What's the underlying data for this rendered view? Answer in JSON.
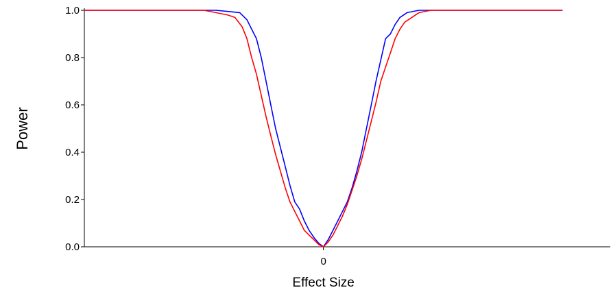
{
  "chart_data": {
    "type": "line",
    "title": "",
    "xlabel": "Effect Size",
    "ylabel": "Power",
    "x_tick_labels": [
      {
        "x": 0,
        "label": "0"
      }
    ],
    "y_ticks": [
      {
        "y": 0.0,
        "label": "0.0"
      },
      {
        "y": 0.2,
        "label": "0.2"
      },
      {
        "y": 0.4,
        "label": "0.4"
      },
      {
        "y": 0.6,
        "label": "0.6"
      },
      {
        "y": 0.8,
        "label": "0.8"
      },
      {
        "y": 1.0,
        "label": "1.0"
      }
    ],
    "xlim": [
      -1.0,
      1.2
    ],
    "ylim": [
      0,
      1.0
    ],
    "grid": false,
    "series": [
      {
        "color": "#0000ff",
        "points": [
          [
            -1.0,
            1.0
          ],
          [
            -0.5,
            1.0
          ],
          [
            -0.45,
            1.0
          ],
          [
            -0.4,
            0.995
          ],
          [
            -0.35,
            0.99
          ],
          [
            -0.32,
            0.96
          ],
          [
            -0.3,
            0.92
          ],
          [
            -0.28,
            0.88
          ],
          [
            -0.26,
            0.8
          ],
          [
            -0.24,
            0.7
          ],
          [
            -0.22,
            0.6
          ],
          [
            -0.2,
            0.5
          ],
          [
            -0.18,
            0.42
          ],
          [
            -0.16,
            0.34
          ],
          [
            -0.14,
            0.26
          ],
          [
            -0.12,
            0.19
          ],
          [
            -0.1,
            0.16
          ],
          [
            -0.08,
            0.11
          ],
          [
            -0.06,
            0.07
          ],
          [
            -0.04,
            0.04
          ],
          [
            -0.02,
            0.015
          ],
          [
            0.0,
            0.0
          ],
          [
            0.02,
            0.03
          ],
          [
            0.04,
            0.07
          ],
          [
            0.06,
            0.11
          ],
          [
            0.08,
            0.15
          ],
          [
            0.1,
            0.19
          ],
          [
            0.12,
            0.25
          ],
          [
            0.14,
            0.32
          ],
          [
            0.16,
            0.4
          ],
          [
            0.18,
            0.5
          ],
          [
            0.2,
            0.6
          ],
          [
            0.22,
            0.7
          ],
          [
            0.24,
            0.79
          ],
          [
            0.26,
            0.88
          ],
          [
            0.28,
            0.9
          ],
          [
            0.3,
            0.94
          ],
          [
            0.32,
            0.97
          ],
          [
            0.35,
            0.99
          ],
          [
            0.4,
            1.0
          ],
          [
            0.45,
            1.0
          ],
          [
            0.5,
            1.0
          ],
          [
            1.0,
            1.0
          ]
        ]
      },
      {
        "color": "#ff0000",
        "points": [
          [
            -1.0,
            1.0
          ],
          [
            -0.5,
            1.0
          ],
          [
            -0.45,
            0.99
          ],
          [
            -0.4,
            0.98
          ],
          [
            -0.37,
            0.97
          ],
          [
            -0.34,
            0.93
          ],
          [
            -0.32,
            0.88
          ],
          [
            -0.3,
            0.8
          ],
          [
            -0.28,
            0.73
          ],
          [
            -0.26,
            0.64
          ],
          [
            -0.24,
            0.55
          ],
          [
            -0.22,
            0.47
          ],
          [
            -0.2,
            0.39
          ],
          [
            -0.18,
            0.32
          ],
          [
            -0.16,
            0.25
          ],
          [
            -0.14,
            0.19
          ],
          [
            -0.12,
            0.15
          ],
          [
            -0.1,
            0.11
          ],
          [
            -0.08,
            0.07
          ],
          [
            -0.06,
            0.05
          ],
          [
            -0.04,
            0.03
          ],
          [
            -0.02,
            0.01
          ],
          [
            0.0,
            0.0
          ],
          [
            0.02,
            0.02
          ],
          [
            0.04,
            0.05
          ],
          [
            0.06,
            0.09
          ],
          [
            0.08,
            0.13
          ],
          [
            0.1,
            0.18
          ],
          [
            0.12,
            0.24
          ],
          [
            0.14,
            0.3
          ],
          [
            0.16,
            0.37
          ],
          [
            0.18,
            0.45
          ],
          [
            0.2,
            0.53
          ],
          [
            0.22,
            0.61
          ],
          [
            0.24,
            0.7
          ],
          [
            0.26,
            0.76
          ],
          [
            0.28,
            0.82
          ],
          [
            0.3,
            0.88
          ],
          [
            0.32,
            0.92
          ],
          [
            0.34,
            0.95
          ],
          [
            0.37,
            0.97
          ],
          [
            0.4,
            0.99
          ],
          [
            0.45,
            1.0
          ],
          [
            0.5,
            1.0
          ],
          [
            1.0,
            1.0
          ]
        ]
      }
    ]
  }
}
